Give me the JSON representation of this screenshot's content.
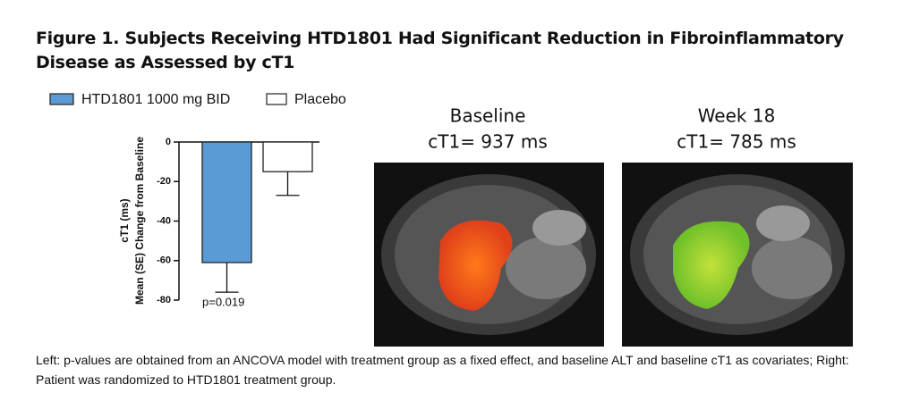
{
  "title": "Figure 1. Subjects Receiving HTD1801 Had Significant Reduction in Fibroinflammatory Disease as Assessed by cT1",
  "chart_data": {
    "type": "bar",
    "series": [
      {
        "name": "HTD1801 1000 mg BID",
        "color": "#5b9bd5",
        "values": [
          -61
        ],
        "errors": [
          15
        ]
      },
      {
        "name": "Placebo",
        "color": "#ffffff",
        "values": [
          -15
        ],
        "errors": [
          12
        ]
      }
    ],
    "ylabel": [
      "cT1 (ms)",
      "Mean (SE) Change from Baseline"
    ],
    "ylim": [
      -80,
      0
    ],
    "yticks": [
      0,
      -20,
      -40,
      -60,
      -80
    ],
    "annotations": [
      {
        "text": "p=0.019"
      }
    ]
  },
  "images": [
    {
      "label": "Baseline",
      "caption": "cT1= 937 ms"
    },
    {
      "label": "Week 18",
      "caption": "cT1= 785 ms"
    }
  ],
  "footnote": "Left: p-values are obtained from an ANCOVA model with treatment group as a fixed effect, and baseline ALT and baseline cT1 as covariates; Right: Patient was randomized to HTD1801 treatment group."
}
